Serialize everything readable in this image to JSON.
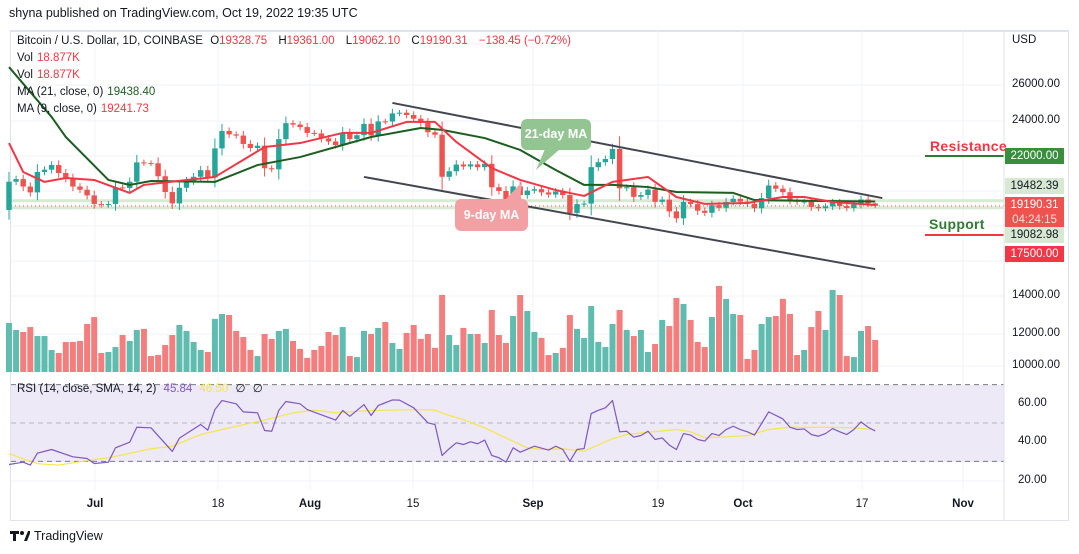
{
  "published": "shyna published on TradingView.com, Oct 19, 2022 19:35 UTC",
  "legend": {
    "symbol": "Bitcoin / U.S. Dollar, 1D, COINBASE",
    "o_label": "O",
    "o": "19328.75",
    "h_label": "H",
    "h": "19361.00",
    "l_label": "L",
    "l": "19062.10",
    "c_label": "C",
    "c": "19190.31",
    "change": "−138.45 (−0.72%)",
    "vol1_label": "Vol",
    "vol1": "18.877K",
    "vol2_label": "Vol",
    "vol2": "18.877K",
    "ma21_label": "MA (21, close, 0)",
    "ma21": "19438.40",
    "ma9_label": "MA (9, close, 0)",
    "ma9": "19241.73",
    "rsi_label": "RSI (14, close, SMA, 14, 2)",
    "rsi": "45.84",
    "rsi_sma": "46.50",
    "na1": "∅",
    "na2": "∅"
  },
  "price_axis": {
    "currency": "USD",
    "labels": [
      "26000.00",
      "24000.00",
      "14000.00",
      "12000.00",
      "10000.00"
    ],
    "resistance_badge": "22000.00",
    "upper_badge": "19482.39",
    "last_price_badge": "19190.31",
    "countdown": "04:24:15",
    "lower_badge": "19082.98",
    "support_badge": "17500.00"
  },
  "rsi_axis": {
    "labels": [
      "60.00",
      "40.00",
      "20.00"
    ]
  },
  "time_axis": {
    "labels": [
      "Jul",
      "18",
      "Aug",
      "15",
      "Sep",
      "19",
      "Oct",
      "17",
      "Nov"
    ]
  },
  "annotations": {
    "resistance": "Resistance",
    "support": "Support",
    "ma21_callout": "21-day MA",
    "ma9_callout": "9-day MA"
  },
  "footer": {
    "brand": "TradingView"
  },
  "colors": {
    "up": "#26a69a",
    "down": "#ef5350",
    "vol_up": "#5fbcaf",
    "vol_down": "#f47d7d",
    "ma21": "#1b5e20",
    "ma9": "#f23645",
    "rsi": "#7e57c2",
    "rsi_sma": "#f5e64a",
    "resistance": "#f23645",
    "support": "#2e7d32"
  },
  "chart_data": {
    "type": "candlestick",
    "symbol": "Bitcoin / U.S. Dollar",
    "interval": "1D",
    "period": {
      "from": "2022-06-19",
      "to": "2022-10-19"
    },
    "first_open": 18960,
    "last_candle": {
      "open": 19328.75,
      "high": 19361.0,
      "low": 19062.1,
      "close": 19190.31
    },
    "closes": [
      20550,
      20700,
      20280,
      19950,
      21100,
      21230,
      21490,
      21040,
      20740,
      20280,
      20100,
      19780,
      19300,
      19250,
      19300,
      20230,
      20190,
      20550,
      21640,
      21600,
      21590,
      20860,
      19970,
      19330,
      20210,
      20580,
      20830,
      21200,
      20790,
      22430,
      23410,
      23220,
      23150,
      22680,
      22450,
      22580,
      21310,
      21250,
      22950,
      23850,
      23770,
      23630,
      23300,
      23270,
      22990,
      22820,
      22620,
      23310,
      22960,
      23170,
      23810,
      23160,
      23950,
      23940,
      24400,
      24440,
      24310,
      24100,
      23860,
      23340,
      23200,
      20830,
      21140,
      21520,
      21410,
      21530,
      21370,
      21560,
      20240,
      20030,
      19550,
      20290,
      19800,
      20050,
      20130,
      19950,
      19830,
      20000,
      19800,
      18790,
      19290,
      19320,
      21370,
      21650,
      21830,
      22400,
      20180,
      20240,
      19700,
      19800,
      20110,
      19420,
      19540,
      18880,
      18490,
      19410,
      19290,
      18920,
      18800,
      19230,
      19080,
      19410,
      19590,
      19430,
      19310,
      19060,
      19630,
      20340,
      20160,
      19960,
      19530,
      19420,
      19440,
      19130,
      19060,
      19160,
      19380,
      19180,
      19070,
      19270,
      19550,
      19328.75,
      19190.31
    ],
    "volume_k": [
      28.9,
      24.8,
      23.6,
      26.5,
      21.2,
      21.2,
      13.0,
      11.2,
      17.7,
      17.7,
      18.3,
      28.3,
      32.4,
      11.2,
      11.8,
      14.7,
      21.8,
      18.3,
      24.8,
      25.4,
      9.4,
      10.0,
      15.9,
      21.8,
      27.7,
      24.2,
      17.7,
      13.0,
      11.8,
      31.3,
      34.2,
      33.6,
      24.2,
      20.6,
      13.0,
      9.4,
      22.4,
      19.5,
      24.2,
      25.4,
      18.3,
      13.6,
      8.3,
      13.0,
      15.3,
      23.6,
      21.8,
      26.5,
      9.4,
      8.8,
      24.2,
      22.4,
      26.0,
      29.5,
      17.1,
      13.6,
      23.0,
      27.7,
      19.5,
      22.4,
      14.2,
      45.4,
      21.8,
      15.9,
      26.0,
      22.4,
      22.4,
      17.1,
      36.6,
      21.8,
      17.1,
      33.0,
      45.4,
      36.0,
      23.6,
      20.1,
      10.0,
      11.2,
      14.2,
      33.6,
      25.4,
      20.1,
      38.9,
      17.7,
      14.7,
      28.3,
      36.6,
      24.8,
      21.2,
      24.8,
      11.8,
      16.5,
      30.7,
      27.1,
      43.6,
      40.1,
      30.7,
      17.7,
      14.7,
      32.4,
      50.7,
      43.1,
      34.2,
      33.6,
      7.7,
      13.0,
      28.3,
      32.4,
      33.0,
      43.1,
      34.2,
      10.0,
      13.0,
      26.5,
      36.0,
      24.8,
      48.4,
      45.4,
      9.4,
      8.8,
      24.2,
      27.1,
      18.877
    ],
    "ma21": [
      [
        "06-19",
        27010
      ],
      [
        "06-25",
        24200
      ],
      [
        "06-27",
        23070
      ],
      [
        "07-03",
        20650
      ],
      [
        "07-06",
        20370
      ],
      [
        "07-09",
        20590
      ],
      [
        "07-18",
        20540
      ],
      [
        "07-24",
        21490
      ],
      [
        "07-30",
        21940
      ],
      [
        "08-05",
        22620
      ],
      [
        "08-09",
        23070
      ],
      [
        "08-16",
        23580
      ],
      [
        "08-19",
        23470
      ],
      [
        "08-25",
        23010
      ],
      [
        "08-30",
        22340
      ],
      [
        "09-04",
        21210
      ],
      [
        "09-08",
        20370
      ],
      [
        "09-12",
        20370
      ],
      [
        "09-17",
        20250
      ],
      [
        "09-21",
        19970
      ],
      [
        "09-29",
        19920
      ],
      [
        "10-02",
        19520
      ],
      [
        "10-10",
        19470
      ],
      [
        "10-19",
        19438.4
      ]
    ],
    "ma9": [
      [
        "06-19",
        22730
      ],
      [
        "06-21",
        21100
      ],
      [
        "06-24",
        20540
      ],
      [
        "06-27",
        20760
      ],
      [
        "07-01",
        20650
      ],
      [
        "07-06",
        19920
      ],
      [
        "07-08",
        20370
      ],
      [
        "07-14",
        20650
      ],
      [
        "07-18",
        20820
      ],
      [
        "07-22",
        21780
      ],
      [
        "07-25",
        22510
      ],
      [
        "07-30",
        22730
      ],
      [
        "08-05",
        23300
      ],
      [
        "08-09",
        23300
      ],
      [
        "08-14",
        23920
      ],
      [
        "08-18",
        23920
      ],
      [
        "08-21",
        22790
      ],
      [
        "08-26",
        21320
      ],
      [
        "08-30",
        20650
      ],
      [
        "09-04",
        20080
      ],
      [
        "09-08",
        19750
      ],
      [
        "09-12",
        20540
      ],
      [
        "09-17",
        20820
      ],
      [
        "09-21",
        19690
      ],
      [
        "09-25",
        19300
      ],
      [
        "10-01",
        19350
      ],
      [
        "10-06",
        19690
      ],
      [
        "10-09",
        19690
      ],
      [
        "10-13",
        19410
      ],
      [
        "10-19",
        19241.73
      ]
    ],
    "rsi": [
      [
        "06-19",
        28.4
      ],
      [
        "06-21",
        29.6
      ],
      [
        "06-22",
        28.1
      ],
      [
        "06-23",
        34.3
      ],
      [
        "06-25",
        36.2
      ],
      [
        "06-28",
        32.4
      ],
      [
        "06-30",
        31.5
      ],
      [
        "07-01",
        28.9
      ],
      [
        "07-03",
        29.6
      ],
      [
        "07-04",
        37.1
      ],
      [
        "07-06",
        40.0
      ],
      [
        "07-07",
        47.8
      ],
      [
        "07-09",
        47.5
      ],
      [
        "07-12",
        35.2
      ],
      [
        "07-13",
        42.1
      ],
      [
        "07-16",
        49.2
      ],
      [
        "07-17",
        46.3
      ],
      [
        "07-18",
        57.0
      ],
      [
        "07-19",
        61.7
      ],
      [
        "07-21",
        60.0
      ],
      [
        "07-22",
        55.8
      ],
      [
        "07-24",
        55.3
      ],
      [
        "07-25",
        46.1
      ],
      [
        "07-26",
        45.7
      ],
      [
        "07-27",
        56.6
      ],
      [
        "07-28",
        61.2
      ],
      [
        "07-30",
        60.0
      ],
      [
        "07-31",
        57.0
      ],
      [
        "08-04",
        51.5
      ],
      [
        "08-05",
        56.5
      ],
      [
        "08-06",
        53.5
      ],
      [
        "08-08",
        59.6
      ],
      [
        "08-09",
        53.9
      ],
      [
        "08-10",
        59.1
      ],
      [
        "08-12",
        62.0
      ],
      [
        "08-13",
        61.9
      ],
      [
        "08-15",
        57.9
      ],
      [
        "08-17",
        50.1
      ],
      [
        "08-18",
        49.2
      ],
      [
        "08-19",
        33.1
      ],
      [
        "08-20",
        36.6
      ],
      [
        "08-21",
        39.7
      ],
      [
        "08-22",
        38.8
      ],
      [
        "08-23",
        40.2
      ],
      [
        "08-24",
        39.2
      ],
      [
        "08-25",
        41.1
      ],
      [
        "08-26",
        33.1
      ],
      [
        "08-27",
        31.9
      ],
      [
        "08-28",
        29.6
      ],
      [
        "08-29",
        37.1
      ],
      [
        "08-30",
        34.8
      ],
      [
        "09-01",
        37.9
      ],
      [
        "09-03",
        35.9
      ],
      [
        "09-04",
        37.9
      ],
      [
        "09-05",
        36.2
      ],
      [
        "09-06",
        30.1
      ],
      [
        "09-07",
        36.2
      ],
      [
        "09-08",
        36.7
      ],
      [
        "09-09",
        54.9
      ],
      [
        "09-10",
        56.6
      ],
      [
        "09-11",
        57.9
      ],
      [
        "09-12",
        61.7
      ],
      [
        "09-13",
        45.4
      ],
      [
        "09-14",
        45.7
      ],
      [
        "09-15",
        42.6
      ],
      [
        "09-16",
        43.5
      ],
      [
        "09-17",
        45.7
      ],
      [
        "09-18",
        41.4
      ],
      [
        "09-19",
        42.2
      ],
      [
        "09-20",
        38.5
      ],
      [
        "09-21",
        36.2
      ],
      [
        "09-22",
        44.5
      ],
      [
        "09-23",
        43.7
      ],
      [
        "09-24",
        41.4
      ],
      [
        "09-25",
        40.6
      ],
      [
        "09-26",
        44.5
      ],
      [
        "09-27",
        43.5
      ],
      [
        "09-28",
        46.6
      ],
      [
        "09-29",
        48.3
      ],
      [
        "09-30",
        46.6
      ],
      [
        "10-01",
        45.4
      ],
      [
        "10-02",
        43.7
      ],
      [
        "10-04",
        55.8
      ],
      [
        "10-06",
        52.1
      ],
      [
        "10-07",
        47.8
      ],
      [
        "10-08",
        46.6
      ],
      [
        "10-09",
        46.9
      ],
      [
        "10-10",
        44.0
      ],
      [
        "10-11",
        43.1
      ],
      [
        "10-12",
        44.5
      ],
      [
        "10-13",
        47.1
      ],
      [
        "10-14",
        45.4
      ],
      [
        "10-15",
        44.0
      ],
      [
        "10-16",
        46.6
      ],
      [
        "10-17",
        50.6
      ],
      [
        "10-18",
        47.8
      ],
      [
        "10-19",
        45.84
      ]
    ],
    "rsi_sma": [
      [
        "06-19",
        34.1
      ],
      [
        "06-23",
        28.8
      ],
      [
        "06-26",
        28.1
      ],
      [
        "07-01",
        31.0
      ],
      [
        "07-03",
        31.9
      ],
      [
        "07-05",
        33.4
      ],
      [
        "07-09",
        36.6
      ],
      [
        "07-12",
        37.9
      ],
      [
        "07-16",
        44.0
      ],
      [
        "07-21",
        48.3
      ],
      [
        "07-25",
        51.5
      ],
      [
        "07-29",
        55.3
      ],
      [
        "08-01",
        56.7
      ],
      [
        "08-04",
        55.3
      ],
      [
        "08-09",
        56.5
      ],
      [
        "08-16",
        57.0
      ],
      [
        "08-18",
        56.7
      ],
      [
        "08-20",
        53.9
      ],
      [
        "08-22",
        51.8
      ],
      [
        "08-25",
        47.5
      ],
      [
        "08-29",
        40.5
      ],
      [
        "08-31",
        37.1
      ],
      [
        "09-02",
        36.2
      ],
      [
        "09-05",
        36.6
      ],
      [
        "09-08",
        35.3
      ],
      [
        "09-12",
        41.8
      ],
      [
        "09-14",
        44.0
      ],
      [
        "09-17",
        45.2
      ],
      [
        "09-21",
        46.6
      ],
      [
        "09-23",
        45.4
      ],
      [
        "09-25",
        42.3
      ],
      [
        "09-28",
        42.8
      ],
      [
        "10-01",
        43.5
      ],
      [
        "10-04",
        46.6
      ],
      [
        "10-07",
        47.8
      ],
      [
        "10-12",
        47.8
      ],
      [
        "10-16",
        47.5
      ],
      [
        "10-19",
        46.5
      ]
    ],
    "rsi_bands": [
      70,
      50,
      30
    ],
    "channel": {
      "upper": [
        [
          "08-12",
          24990
        ],
        [
          "10-20",
          19630
        ]
      ],
      "lower": [
        [
          "08-08",
          20820
        ],
        [
          "10-19",
          15630
        ]
      ]
    },
    "levels": {
      "resistance": 22000,
      "support": 17500,
      "upper": 19482.39,
      "lower": 19082.98,
      "last": 19190.31
    },
    "grid": true
  }
}
